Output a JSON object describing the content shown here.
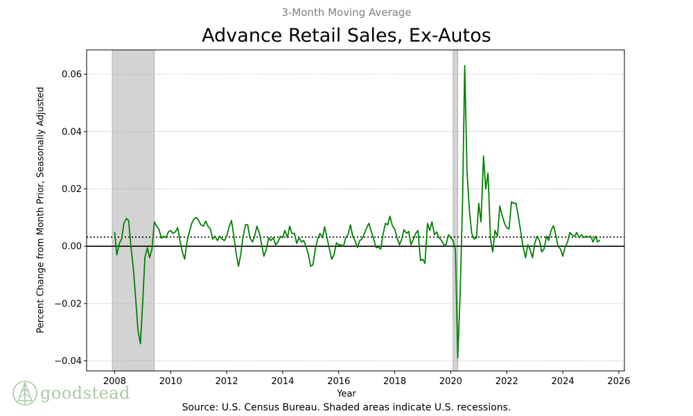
{
  "chart_data": {
    "type": "line",
    "subtitle": "3-Month Moving Average",
    "title": "Advance Retail Sales, Ex-Autos",
    "xlabel": "Year",
    "ylabel": "Percent Change from Month Prior, Seasonally Adjusted",
    "source": "Source:  U.S. Census Bureau. Shaded areas indicate U.S. recessions.",
    "xlim": [
      2007.0,
      2026.2
    ],
    "ylim": [
      -0.0435,
      0.0685
    ],
    "xticks": [
      2008,
      2010,
      2012,
      2014,
      2016,
      2018,
      2020,
      2022,
      2024,
      2026
    ],
    "xtick_labels": [
      "2008",
      "2010",
      "2012",
      "2014",
      "2016",
      "2018",
      "2020",
      "2022",
      "2024",
      "2026"
    ],
    "yticks": [
      -0.04,
      -0.02,
      0.0,
      0.02,
      0.04,
      0.06
    ],
    "ytick_labels": [
      "−0.04",
      "−0.02",
      "0.00",
      "0.02",
      "0.04",
      "0.06"
    ],
    "grid": true,
    "recessions": [
      [
        2007.917,
        2009.417
      ],
      [
        2020.083,
        2020.25
      ]
    ],
    "reference_lines": [
      {
        "y": 0.0,
        "style": "solid",
        "color": "#000000"
      },
      {
        "y": 0.0032,
        "style": "dotted",
        "color": "#000000"
      }
    ],
    "series": [
      {
        "name": "3-Month Moving Average",
        "color": "#008000",
        "points": [
          [
            2008.0,
            0.005
          ],
          [
            2008.08,
            -0.003
          ],
          [
            2008.17,
            0.001
          ],
          [
            2008.25,
            0.0025
          ],
          [
            2008.33,
            0.008
          ],
          [
            2008.42,
            0.0097
          ],
          [
            2008.5,
            0.009
          ],
          [
            2008.58,
            0.0
          ],
          [
            2008.67,
            -0.008
          ],
          [
            2008.75,
            -0.018
          ],
          [
            2008.83,
            -0.029
          ],
          [
            2008.92,
            -0.034
          ],
          [
            2009.0,
            -0.02
          ],
          [
            2009.08,
            -0.004
          ],
          [
            2009.17,
            -0.0005
          ],
          [
            2009.25,
            -0.004
          ],
          [
            2009.33,
            -0.001
          ],
          [
            2009.42,
            0.0085
          ],
          [
            2009.5,
            0.007
          ],
          [
            2009.58,
            0.006
          ],
          [
            2009.67,
            0.0028
          ],
          [
            2009.75,
            0.0035
          ],
          [
            2009.83,
            0.003
          ],
          [
            2009.92,
            0.005
          ],
          [
            2010.0,
            0.0055
          ],
          [
            2010.08,
            0.0045
          ],
          [
            2010.17,
            0.005
          ],
          [
            2010.25,
            0.0065
          ],
          [
            2010.33,
            0.002
          ],
          [
            2010.42,
            -0.002
          ],
          [
            2010.5,
            -0.0045
          ],
          [
            2010.58,
            0.0015
          ],
          [
            2010.67,
            0.005
          ],
          [
            2010.75,
            0.008
          ],
          [
            2010.83,
            0.0095
          ],
          [
            2010.92,
            0.01
          ],
          [
            2011.0,
            0.009
          ],
          [
            2011.08,
            0.0075
          ],
          [
            2011.17,
            0.007
          ],
          [
            2011.25,
            0.0088
          ],
          [
            2011.33,
            0.007
          ],
          [
            2011.42,
            0.006
          ],
          [
            2011.5,
            0.0025
          ],
          [
            2011.58,
            0.0035
          ],
          [
            2011.67,
            0.002
          ],
          [
            2011.75,
            0.0035
          ],
          [
            2011.83,
            0.0025
          ],
          [
            2011.92,
            0.002
          ],
          [
            2012.0,
            0.0035
          ],
          [
            2012.08,
            0.0065
          ],
          [
            2012.17,
            0.009
          ],
          [
            2012.25,
            0.004
          ],
          [
            2012.33,
            -0.002
          ],
          [
            2012.42,
            -0.007
          ],
          [
            2012.5,
            -0.003
          ],
          [
            2012.58,
            0.003
          ],
          [
            2012.67,
            0.0075
          ],
          [
            2012.75,
            0.0075
          ],
          [
            2012.83,
            0.003
          ],
          [
            2012.92,
            0.0015
          ],
          [
            2013.0,
            0.0035
          ],
          [
            2013.08,
            0.007
          ],
          [
            2013.17,
            0.0045
          ],
          [
            2013.25,
            0.0005
          ],
          [
            2013.33,
            -0.0035
          ],
          [
            2013.42,
            -0.001
          ],
          [
            2013.5,
            0.003
          ],
          [
            2013.58,
            0.002
          ],
          [
            2013.67,
            0.003
          ],
          [
            2013.75,
            0.0005
          ],
          [
            2013.83,
            0.0015
          ],
          [
            2013.92,
            0.0035
          ],
          [
            2014.0,
            0.003
          ],
          [
            2014.08,
            0.0055
          ],
          [
            2014.17,
            0.003
          ],
          [
            2014.25,
            0.007
          ],
          [
            2014.33,
            0.0045
          ],
          [
            2014.42,
            0.0045
          ],
          [
            2014.5,
            0.001
          ],
          [
            2014.58,
            0.003
          ],
          [
            2014.67,
            0.0015
          ],
          [
            2014.75,
            0.002
          ],
          [
            2014.83,
            0.0
          ],
          [
            2014.92,
            -0.003
          ],
          [
            2015.0,
            -0.007
          ],
          [
            2015.08,
            -0.0065
          ],
          [
            2015.17,
            -0.0005
          ],
          [
            2015.25,
            0.0025
          ],
          [
            2015.33,
            0.0045
          ],
          [
            2015.42,
            0.003
          ],
          [
            2015.5,
            0.0068
          ],
          [
            2015.58,
            0.003
          ],
          [
            2015.67,
            -0.001
          ],
          [
            2015.75,
            -0.0045
          ],
          [
            2015.83,
            -0.003
          ],
          [
            2015.92,
            0.0012
          ],
          [
            2016.0,
            0.0005
          ],
          [
            2016.08,
            0.0005
          ],
          [
            2016.17,
            0.0
          ],
          [
            2016.25,
            0.003
          ],
          [
            2016.33,
            0.004
          ],
          [
            2016.42,
            0.0075
          ],
          [
            2016.5,
            0.0035
          ],
          [
            2016.58,
            0.002
          ],
          [
            2016.67,
            -0.0005
          ],
          [
            2016.75,
            0.002
          ],
          [
            2016.83,
            0.0025
          ],
          [
            2016.92,
            0.0045
          ],
          [
            2017.0,
            0.0065
          ],
          [
            2017.08,
            0.008
          ],
          [
            2017.17,
            0.005
          ],
          [
            2017.25,
            0.0025
          ],
          [
            2017.33,
            -0.0005
          ],
          [
            2017.42,
            -0.0003
          ],
          [
            2017.5,
            -0.001
          ],
          [
            2017.58,
            0.004
          ],
          [
            2017.67,
            0.008
          ],
          [
            2017.75,
            0.0075
          ],
          [
            2017.83,
            0.0105
          ],
          [
            2017.92,
            0.007
          ],
          [
            2018.0,
            0.006
          ],
          [
            2018.08,
            0.003
          ],
          [
            2018.17,
            0.0005
          ],
          [
            2018.25,
            0.0025
          ],
          [
            2018.33,
            0.0058
          ],
          [
            2018.42,
            0.0045
          ],
          [
            2018.5,
            0.0052
          ],
          [
            2018.58,
            0.0005
          ],
          [
            2018.67,
            0.0025
          ],
          [
            2018.75,
            0.0045
          ],
          [
            2018.83,
            0.0055
          ],
          [
            2018.92,
            -0.005
          ],
          [
            2019.0,
            -0.0045
          ],
          [
            2019.08,
            -0.006
          ],
          [
            2019.17,
            0.008
          ],
          [
            2019.25,
            0.0055
          ],
          [
            2019.33,
            0.0085
          ],
          [
            2019.42,
            0.004
          ],
          [
            2019.5,
            0.005
          ],
          [
            2019.58,
            0.003
          ],
          [
            2019.67,
            0.002
          ],
          [
            2019.75,
            0.0005
          ],
          [
            2019.83,
            0.0005
          ],
          [
            2019.92,
            0.004
          ],
          [
            2020.0,
            0.003
          ],
          [
            2020.08,
            0.002
          ],
          [
            2020.17,
            -0.0015
          ],
          [
            2020.25,
            -0.039
          ],
          [
            2020.33,
            -0.018
          ],
          [
            2020.42,
            0.015
          ],
          [
            2020.5,
            0.063
          ],
          [
            2020.58,
            0.026
          ],
          [
            2020.67,
            0.012
          ],
          [
            2020.75,
            0.0045
          ],
          [
            2020.83,
            0.0025
          ],
          [
            2020.92,
            0.003
          ],
          [
            2021.0,
            0.015
          ],
          [
            2021.08,
            0.0085
          ],
          [
            2021.17,
            0.0315
          ],
          [
            2021.25,
            0.02
          ],
          [
            2021.33,
            0.0255
          ],
          [
            2021.42,
            0.0025
          ],
          [
            2021.5,
            -0.002
          ],
          [
            2021.58,
            0.0055
          ],
          [
            2021.67,
            0.0035
          ],
          [
            2021.75,
            0.014
          ],
          [
            2021.83,
            0.011
          ],
          [
            2021.92,
            0.008
          ],
          [
            2022.0,
            0.0065
          ],
          [
            2022.08,
            0.006
          ],
          [
            2022.17,
            0.0155
          ],
          [
            2022.25,
            0.015
          ],
          [
            2022.33,
            0.015
          ],
          [
            2022.42,
            0.01
          ],
          [
            2022.5,
            0.005
          ],
          [
            2022.58,
            0.0
          ],
          [
            2022.67,
            -0.004
          ],
          [
            2022.75,
            0.0005
          ],
          [
            2022.83,
            -0.001
          ],
          [
            2022.92,
            -0.004
          ],
          [
            2023.0,
            0.001
          ],
          [
            2023.08,
            0.0035
          ],
          [
            2023.17,
            0.002
          ],
          [
            2023.25,
            -0.002
          ],
          [
            2023.33,
            -0.001
          ],
          [
            2023.42,
            0.0035
          ],
          [
            2023.5,
            0.002
          ],
          [
            2023.58,
            0.0055
          ],
          [
            2023.67,
            0.0072
          ],
          [
            2023.75,
            0.004
          ],
          [
            2023.83,
            0.0
          ],
          [
            2023.92,
            -0.001
          ],
          [
            2024.0,
            -0.0035
          ],
          [
            2024.08,
            -0.0005
          ],
          [
            2024.17,
            0.0015
          ],
          [
            2024.25,
            0.0048
          ],
          [
            2024.33,
            0.004
          ],
          [
            2024.42,
            0.0035
          ],
          [
            2024.5,
            0.0048
          ],
          [
            2024.58,
            0.003
          ],
          [
            2024.67,
            0.004
          ],
          [
            2024.75,
            0.003
          ],
          [
            2024.83,
            0.0035
          ],
          [
            2024.92,
            0.0032
          ],
          [
            2025.0,
            0.0035
          ],
          [
            2025.08,
            0.0015
          ],
          [
            2025.17,
            0.0035
          ],
          [
            2025.25,
            0.0015
          ],
          [
            2025.33,
            0.0022
          ]
        ]
      }
    ]
  },
  "logo": {
    "text": "goodstead",
    "color": "#a9c9a4"
  }
}
